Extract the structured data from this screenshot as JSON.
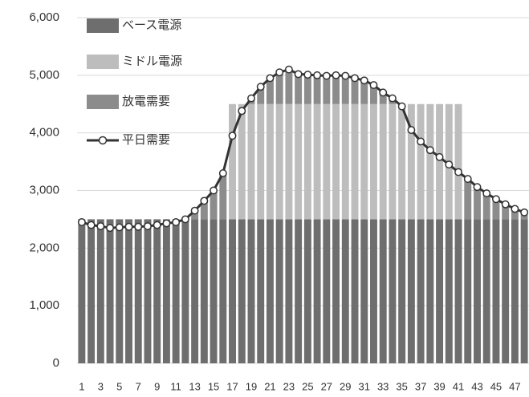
{
  "chart_data": {
    "type": "bar",
    "stacked": true,
    "categories": [
      "1",
      null,
      "3",
      null,
      "5",
      null,
      "7",
      null,
      "9",
      null,
      "11",
      null,
      "13",
      null,
      "15",
      null,
      "17",
      null,
      "19",
      null,
      "21",
      null,
      "23",
      null,
      "25",
      null,
      "27",
      null,
      "29",
      null,
      "31",
      null,
      "33",
      null,
      "35",
      null,
      "37",
      null,
      "39",
      null,
      "41",
      null,
      "43",
      null,
      "45",
      null,
      "47",
      null
    ],
    "series": [
      {
        "name": "ベース電源",
        "type": "bar",
        "color": "#6e6e6e",
        "values": [
          2500,
          2500,
          2500,
          2500,
          2500,
          2500,
          2500,
          2500,
          2500,
          2500,
          2500,
          2500,
          2500,
          2500,
          2500,
          2500,
          2500,
          2500,
          2500,
          2500,
          2500,
          2500,
          2500,
          2500,
          2500,
          2500,
          2500,
          2500,
          2500,
          2500,
          2500,
          2500,
          2500,
          2500,
          2500,
          2500,
          2500,
          2500,
          2500,
          2500,
          2500,
          2500,
          2500,
          2500,
          2500,
          2500,
          2500,
          2500
        ]
      },
      {
        "name": "ミドル電源",
        "type": "bar",
        "color": "#bdbdbd",
        "values": [
          0,
          0,
          0,
          0,
          0,
          0,
          0,
          0,
          0,
          0,
          0,
          0,
          0,
          0,
          0,
          0,
          2000,
          2000,
          2000,
          2000,
          2000,
          2000,
          2000,
          2000,
          2000,
          2000,
          2000,
          2000,
          2000,
          2000,
          2000,
          2000,
          2000,
          2000,
          2000,
          2000,
          2000,
          2000,
          2000,
          2000,
          2000,
          0,
          0,
          0,
          0,
          0,
          0,
          0
        ]
      },
      {
        "name": "放電需要",
        "type": "bar",
        "color": "#8c8c8c",
        "values": [
          0,
          0,
          0,
          0,
          0,
          0,
          0,
          0,
          0,
          0,
          0,
          0,
          150,
          320,
          500,
          800,
          0,
          0,
          100,
          300,
          450,
          550,
          600,
          520,
          510,
          500,
          490,
          500,
          490,
          450,
          410,
          330,
          200,
          100,
          0,
          0,
          0,
          0,
          0,
          0,
          0,
          700,
          560,
          450,
          350,
          260,
          180,
          120
        ]
      },
      {
        "name": "平日需要",
        "type": "line",
        "color": "#333333",
        "values": [
          2450,
          2400,
          2380,
          2350,
          2360,
          2370,
          2370,
          2380,
          2400,
          2430,
          2450,
          2500,
          2650,
          2820,
          3000,
          3300,
          3950,
          4380,
          4600,
          4800,
          4950,
          5050,
          5100,
          5020,
          5010,
          5000,
          4990,
          5000,
          4990,
          4950,
          4910,
          4830,
          4700,
          4600,
          4460,
          4050,
          3850,
          3700,
          3580,
          3450,
          3320,
          3200,
          3060,
          2950,
          2850,
          2760,
          2680,
          2620
        ]
      }
    ],
    "ylim": [
      0,
      6000
    ],
    "yticks": [
      0,
      {
        "value": 1000,
        "label": "1,000"
      },
      {
        "value": 2000,
        "label": "2,000"
      },
      {
        "value": 3000,
        "label": "3,000"
      },
      {
        "value": 4000,
        "label": "4,000"
      },
      {
        "value": 5000,
        "label": "5,000"
      },
      {
        "value": 6000,
        "label": "6,000"
      }
    ],
    "grid": true,
    "legend": "top-left"
  }
}
